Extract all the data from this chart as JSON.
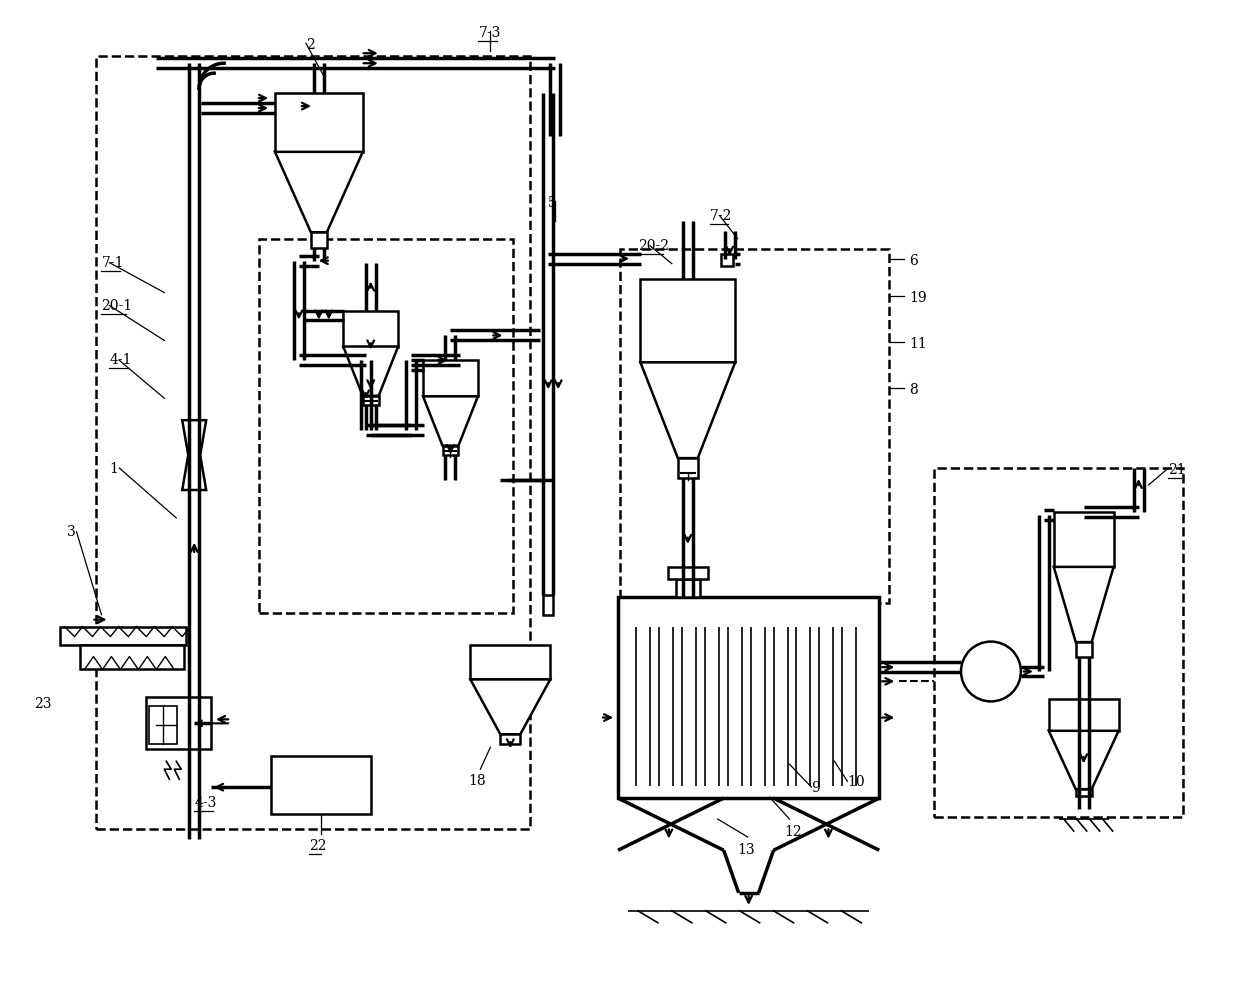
{
  "bg_color": "#ffffff",
  "lc": "#000000",
  "fig_w": 12.4,
  "fig_h": 9.82,
  "dpi": 100
}
